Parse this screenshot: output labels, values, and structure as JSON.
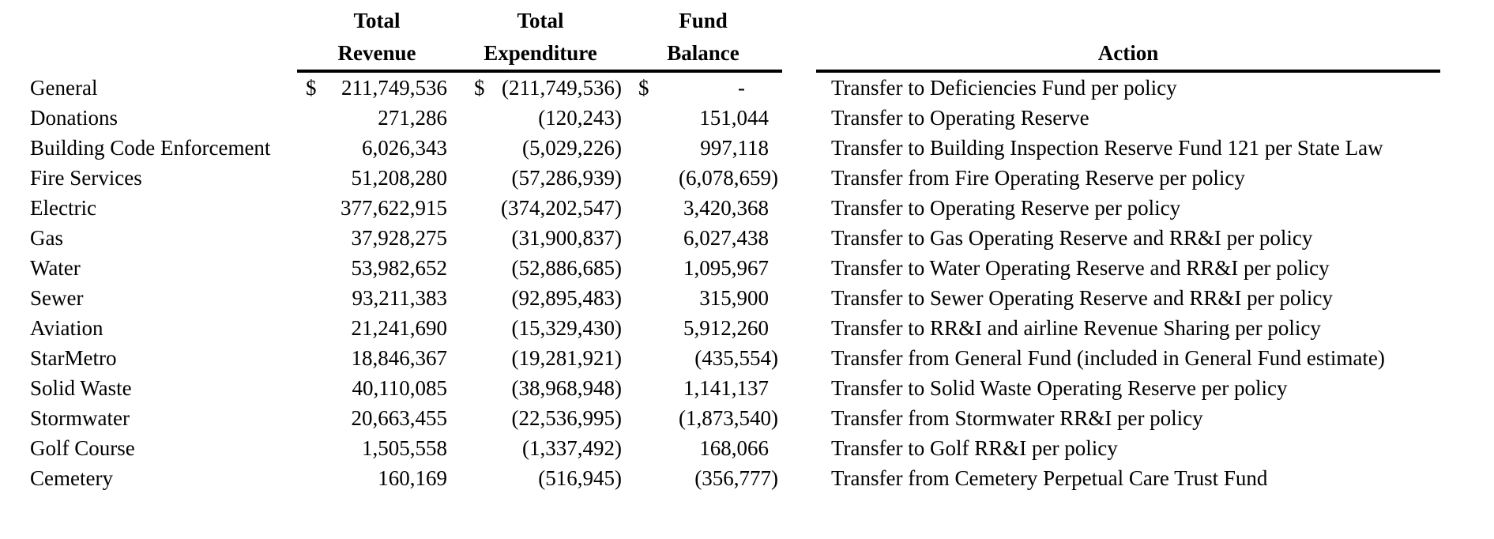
{
  "document": {
    "background_color": "#ffffff",
    "text_color": "#000000",
    "rule_color": "#000000"
  },
  "table": {
    "headers": {
      "fund_name": "",
      "revenue_line1": "Total",
      "revenue_line2": "Revenue",
      "expenditure_line1": "Total",
      "expenditure_line2": "Expenditure",
      "balance_line1": "Fund",
      "balance_line2": "Balance",
      "action": "Action"
    },
    "rows": [
      {
        "fund": "General",
        "cur": "$",
        "revenue": "211,749,536",
        "expenditure": "(211,749,536)",
        "balance": "-",
        "action": "Transfer to Deficiencies Fund per policy"
      },
      {
        "fund": "Donations",
        "cur": "",
        "revenue": "271,286",
        "expenditure": "(120,243)",
        "balance": "151,044",
        "action": "Transfer to Operating Reserve"
      },
      {
        "fund": "Building Code Enforcement",
        "cur": "",
        "revenue": "6,026,343",
        "expenditure": "(5,029,226)",
        "balance": "997,118",
        "action": "Transfer to Building Inspection Reserve Fund 121 per State Law"
      },
      {
        "fund": "Fire Services",
        "cur": "",
        "revenue": "51,208,280",
        "expenditure": "(57,286,939)",
        "balance": "(6,078,659)",
        "action": "Transfer from Fire Operating Reserve per policy"
      },
      {
        "fund": "Electric",
        "cur": "",
        "revenue": "377,622,915",
        "expenditure": "(374,202,547)",
        "balance": "3,420,368",
        "action": "Transfer to Operating Reserve per policy"
      },
      {
        "fund": "Gas",
        "cur": "",
        "revenue": "37,928,275",
        "expenditure": "(31,900,837)",
        "balance": "6,027,438",
        "action": "Transfer to Gas Operating Reserve and RR&I per policy"
      },
      {
        "fund": "Water",
        "cur": "",
        "revenue": "53,982,652",
        "expenditure": "(52,886,685)",
        "balance": "1,095,967",
        "action": "Transfer to Water Operating Reserve and RR&I per policy"
      },
      {
        "fund": "Sewer",
        "cur": "",
        "revenue": "93,211,383",
        "expenditure": "(92,895,483)",
        "balance": "315,900",
        "action": "Transfer to Sewer Operating Reserve and RR&I per policy"
      },
      {
        "fund": "Aviation",
        "cur": "",
        "revenue": "21,241,690",
        "expenditure": "(15,329,430)",
        "balance": "5,912,260",
        "action": "Transfer to RR&I and airline Revenue Sharing per policy"
      },
      {
        "fund": "StarMetro",
        "cur": "",
        "revenue": "18,846,367",
        "expenditure": "(19,281,921)",
        "balance": "(435,554)",
        "action": "Transfer from General Fund (included in General Fund estimate)"
      },
      {
        "fund": "Solid Waste",
        "cur": "",
        "revenue": "40,110,085",
        "expenditure": "(38,968,948)",
        "balance": "1,141,137",
        "action": "Transfer to Solid Waste Operating Reserve per policy"
      },
      {
        "fund": "Stormwater",
        "cur": "",
        "revenue": "20,663,455",
        "expenditure": "(22,536,995)",
        "balance": "(1,873,540)",
        "action": "Transfer from Stormwater RR&I per policy"
      },
      {
        "fund": "Golf Course",
        "cur": "",
        "revenue": "1,505,558",
        "expenditure": "(1,337,492)",
        "balance": "168,066",
        "action": "Transfer to Golf RR&I per policy"
      },
      {
        "fund": "Cemetery",
        "cur": "",
        "revenue": "160,169",
        "expenditure": "(516,945)",
        "balance": "(356,777)",
        "action": "Transfer from Cemetery Perpetual Care Trust Fund"
      }
    ]
  }
}
